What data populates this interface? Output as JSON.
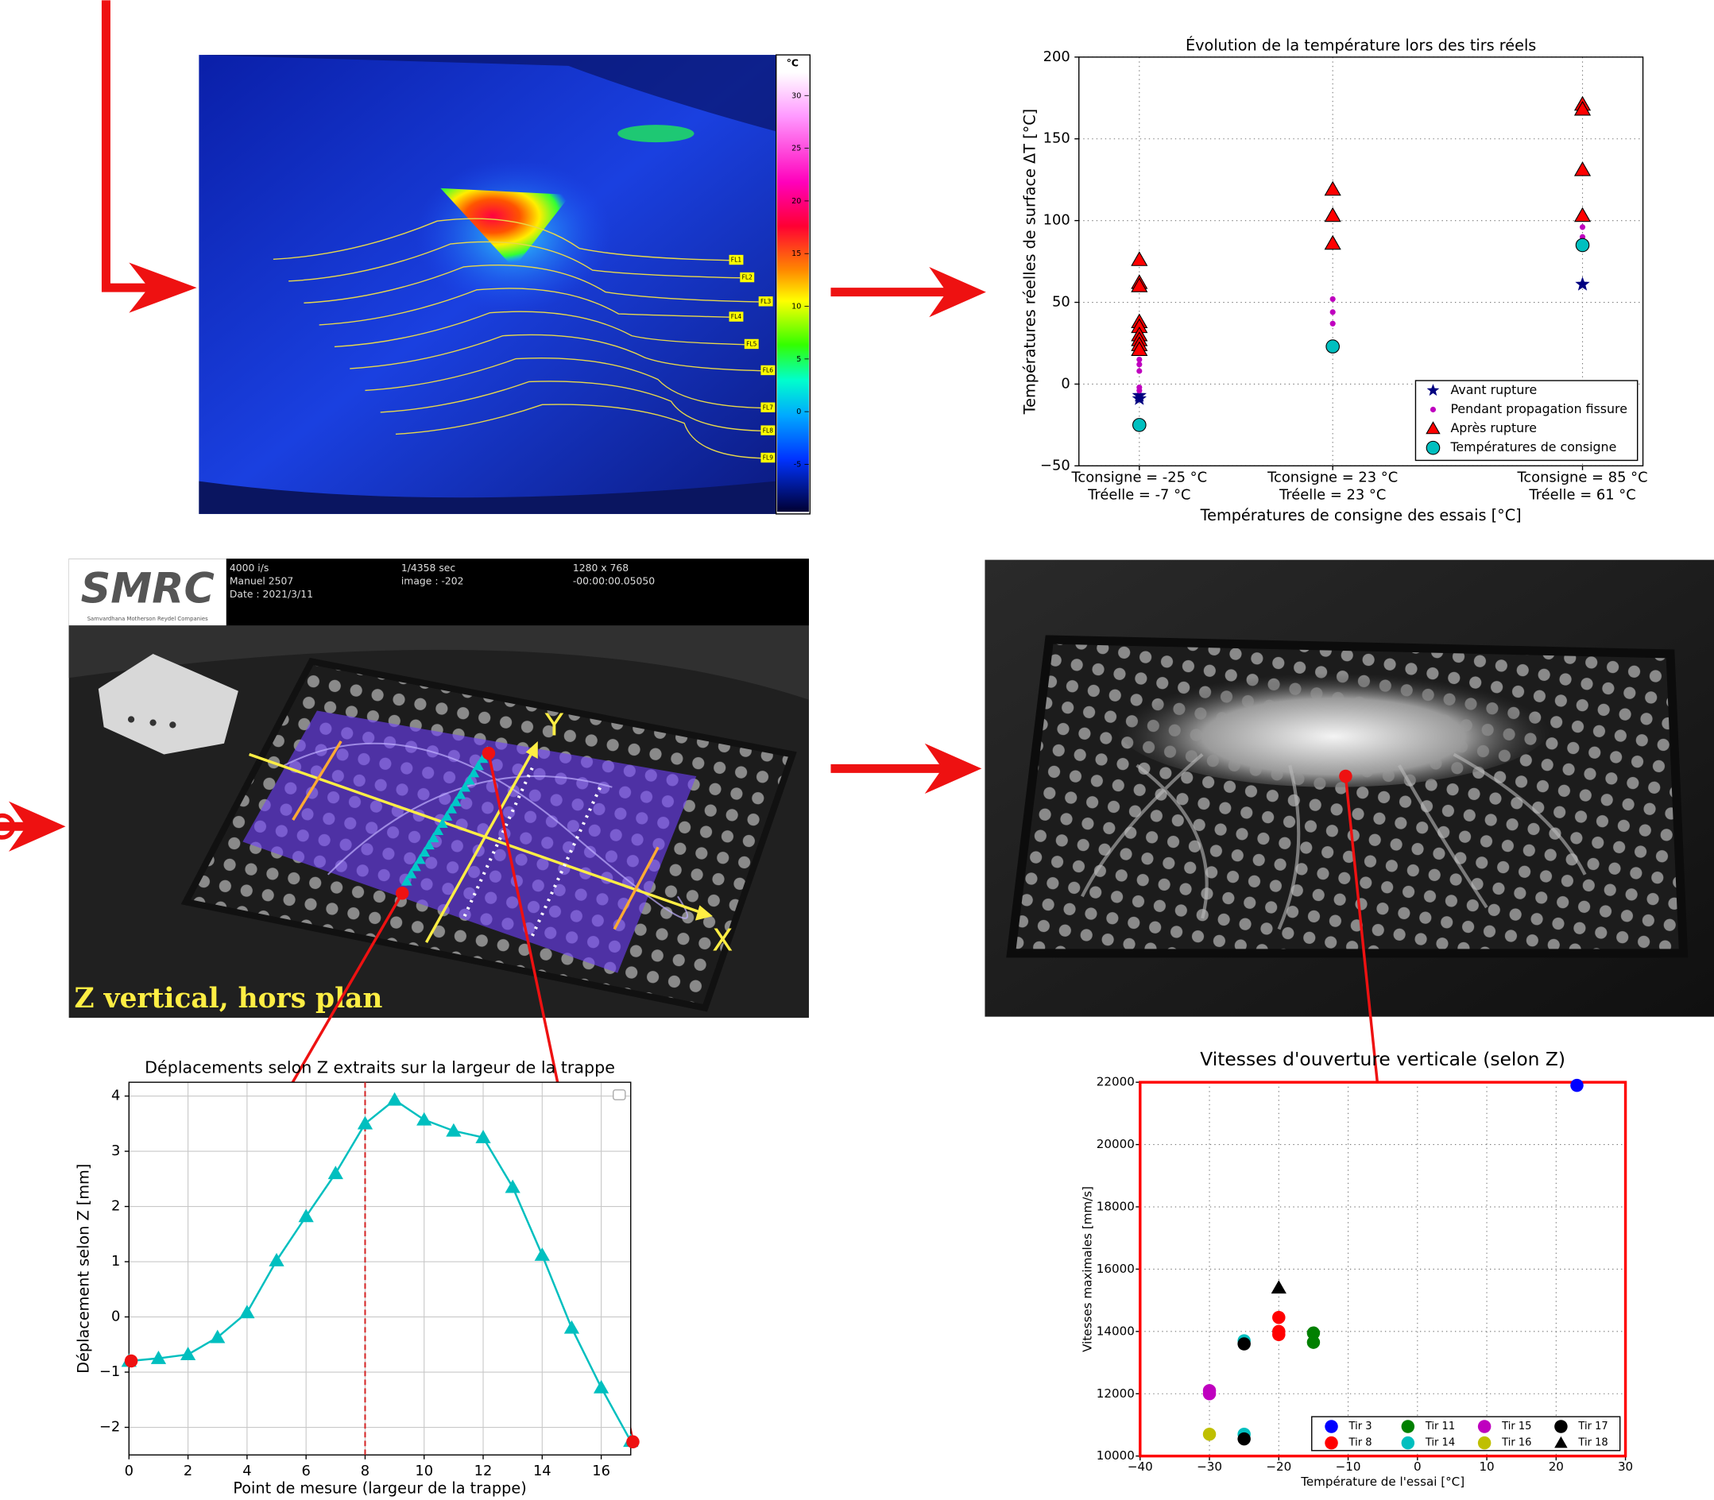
{
  "thermal_image": {
    "unit": "°C",
    "colorbar_lim": [
      -9.5,
      32.2
    ],
    "colorbar_ticks": [
      30,
      25,
      20,
      15,
      10,
      5,
      0,
      -5
    ],
    "line_labels": [
      "FL1",
      "FL2",
      "FL3",
      "FL4",
      "FL5",
      "FL6",
      "FL7",
      "FL8",
      "FL9"
    ]
  },
  "video_frame": {
    "logo": "SMRC",
    "logo_subtitle": "Samvardhana Motherson Reydel Companies",
    "info": [
      "4000 i/s",
      "Manuel 2507",
      "Date : 2021/3/11",
      "1/4358 sec",
      "image : -202",
      "1280 x 768",
      "-00:00:00.05050"
    ],
    "axis_y": "Y",
    "axis_x": "X",
    "caption": "Z vertical, hors plan"
  },
  "chart_data": [
    {
      "type": "scatter",
      "title": "Évolution de la température lors des tirs réels",
      "xlabel": "Températures de consigne des essais [°C]",
      "ylabel": "Températures réelles de surface ΔT [°C]",
      "xlim": [
        -40,
        100
      ],
      "ylim": [
        -50,
        200
      ],
      "xticks": [
        {
          "value": -25,
          "label": "Tconsigne = -25 °C"
        },
        {
          "value": 23,
          "label": "Tconsigne = 23 °C"
        },
        {
          "value": 85,
          "label": "Tconsigne = 85 °C"
        }
      ],
      "xtick_sublabels": [
        "Tréelle = -7 °C",
        "Tréelle = 23 °C",
        "Tréelle = 61 °C"
      ],
      "yticks": [
        {
          "value": -50,
          "label": "−50"
        },
        0,
        50,
        100,
        150,
        200
      ],
      "grid": true,
      "legend": "lower right",
      "series": [
        {
          "name": "Avant rupture",
          "marker": "star",
          "color": "#000080",
          "x": [
            -25,
            -25,
            85
          ],
          "values": [
            -7,
            -9,
            61
          ]
        },
        {
          "name": "Pendant propagation fissure",
          "marker": "dot",
          "color": "#bf00bf",
          "x": [
            -25,
            -25,
            -25,
            -25,
            -25,
            -25,
            23,
            23,
            23,
            85,
            85
          ],
          "values": [
            20,
            15,
            12,
            8,
            -2,
            -4,
            52,
            44,
            37,
            96,
            90
          ]
        },
        {
          "name": "Après rupture",
          "marker": "triangle",
          "color": "#ff0000",
          "edgecolor": "#000000",
          "x": [
            -25,
            -25,
            -25,
            -25,
            -25,
            -25,
            -25,
            -25,
            -25,
            23,
            23,
            23,
            85,
            85,
            85,
            85
          ],
          "values": [
            76,
            62,
            60,
            38,
            35,
            30,
            27,
            24,
            21,
            119,
            103,
            86,
            171,
            168,
            131,
            103
          ]
        },
        {
          "name": "Températures de consigne",
          "marker": "circle",
          "color": "#00bfbf",
          "edgecolor": "#000000",
          "x": [
            -25,
            23,
            85
          ],
          "values": [
            -25,
            23,
            85
          ]
        }
      ]
    },
    {
      "type": "line",
      "title": "Déplacements selon Z extraits sur la largeur de la trappe",
      "xlabel": "Point de mesure (largeur de la trappe)",
      "ylabel": "Déplacement selon Z [mm]",
      "xlim": [
        0,
        17
      ],
      "ylim": [
        -2.5,
        4.25
      ],
      "xticks": [
        0,
        2,
        4,
        6,
        8,
        10,
        12,
        14,
        16
      ],
      "yticks": [
        {
          "value": -2,
          "label": "−2"
        },
        {
          "value": -1,
          "label": "−1"
        },
        0,
        1,
        2,
        3,
        4
      ],
      "grid": true,
      "color": "#00bfbf",
      "marker": "triangle",
      "vline_x": 8,
      "vline_color": "#d62728",
      "x": [
        0,
        1,
        2,
        3,
        4,
        5,
        6,
        7,
        8,
        9,
        10,
        11,
        12,
        13,
        14,
        15,
        16,
        17
      ],
      "values": [
        -0.8,
        -0.75,
        -0.68,
        -0.37,
        0.08,
        1.02,
        1.82,
        2.6,
        3.5,
        3.93,
        3.57,
        3.37,
        3.25,
        2.35,
        1.12,
        -0.2,
        -1.28,
        -2.25
      ]
    },
    {
      "type": "scatter",
      "title": "Vitesses d'ouverture verticale (selon Z)",
      "xlabel": "Température de l'essai [°C]",
      "ylabel": "Vitesses maximales [mm/s]",
      "xlim": [
        -40,
        30
      ],
      "ylim": [
        10000,
        22000
      ],
      "xticks": [
        {
          "value": -40,
          "label": "−40"
        },
        {
          "value": -30,
          "label": "−30"
        },
        {
          "value": -20,
          "label": "−20"
        },
        {
          "value": -10,
          "label": "−10"
        },
        0,
        10,
        20,
        30
      ],
      "yticks": [
        10000,
        12000,
        14000,
        16000,
        18000,
        20000,
        22000
      ],
      "grid": true,
      "legend": "lower right",
      "frame_color": "#ff0000",
      "series": [
        {
          "name": "Tir 3",
          "marker": "circle",
          "color": "#0000ff",
          "x": [
            23
          ],
          "values": [
            21900
          ]
        },
        {
          "name": "Tir 8",
          "marker": "circle",
          "color": "#ff0000",
          "x": [
            -20,
            -20,
            -20
          ],
          "values": [
            14450,
            14000,
            13900
          ]
        },
        {
          "name": "Tir 11",
          "marker": "circle",
          "color": "#008000",
          "x": [
            -15,
            -15
          ],
          "values": [
            13950,
            13650
          ]
        },
        {
          "name": "Tir 14",
          "marker": "circle",
          "color": "#00bfbf",
          "x": [
            -25,
            -25
          ],
          "values": [
            13700,
            10700
          ]
        },
        {
          "name": "Tir 15",
          "marker": "circle",
          "color": "#bf00bf",
          "x": [
            -30,
            -30
          ],
          "values": [
            12100,
            12000
          ]
        },
        {
          "name": "Tir 16",
          "marker": "circle",
          "color": "#bfbf00",
          "x": [
            -30
          ],
          "values": [
            10700
          ]
        },
        {
          "name": "Tir 17",
          "marker": "circle",
          "color": "#000000",
          "x": [
            -25,
            -25
          ],
          "values": [
            13600,
            10550
          ]
        },
        {
          "name": "Tir 18",
          "marker": "triangle",
          "color": "#000000",
          "x": [
            -20
          ],
          "values": [
            15400
          ]
        }
      ]
    }
  ]
}
